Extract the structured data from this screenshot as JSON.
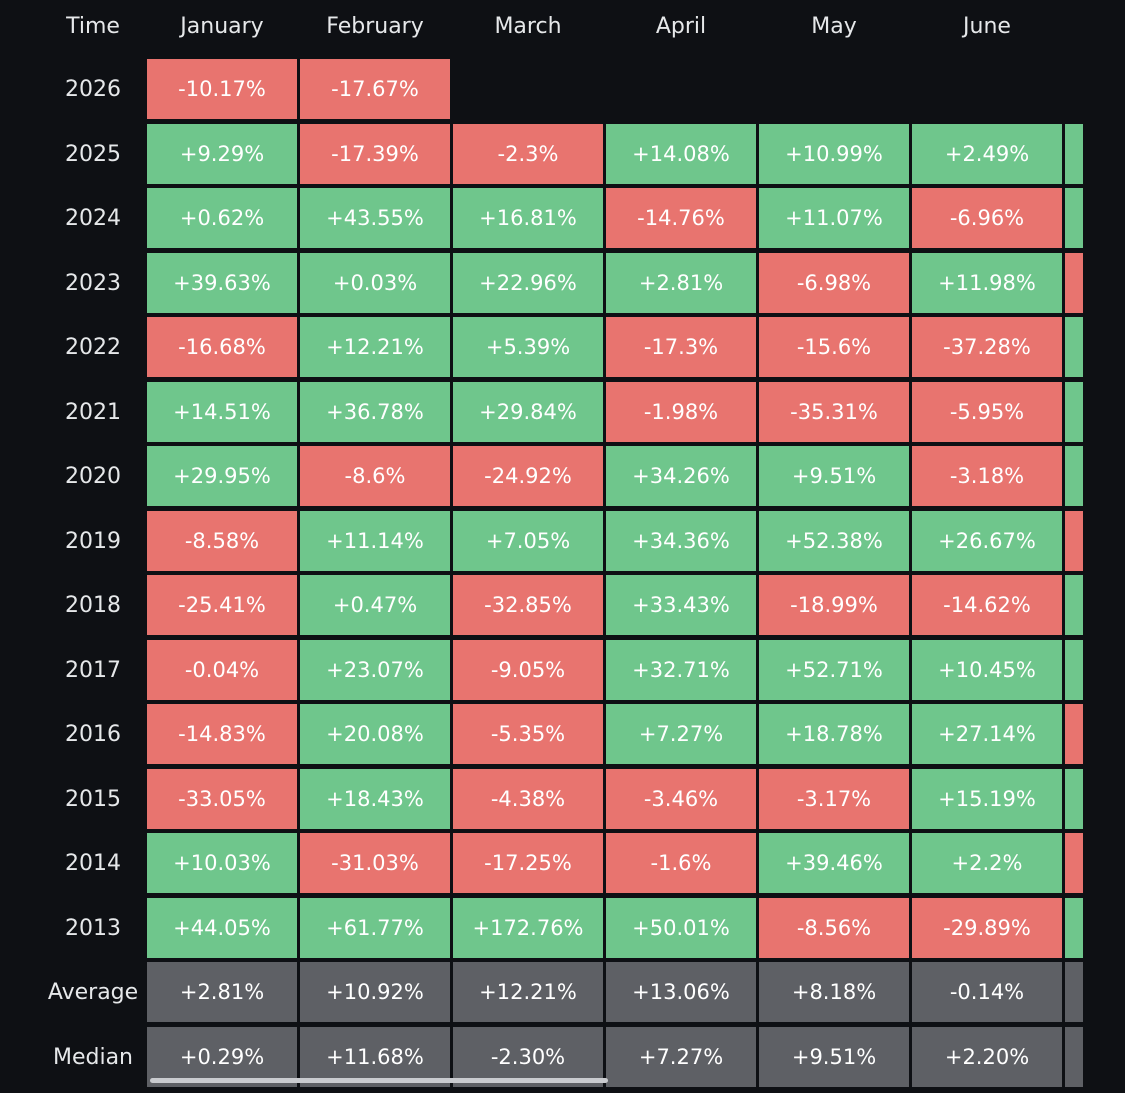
{
  "header": {
    "time_label": "Time",
    "months": [
      "January",
      "February",
      "March",
      "April",
      "May",
      "June"
    ]
  },
  "colors": {
    "positive": "#6fc68c",
    "negative": "#e8746f",
    "summary": "#5e6065",
    "background": "#0e1014"
  },
  "rows": [
    {
      "label": "2026",
      "values": [
        "-10.17%",
        "-17.67%",
        "",
        "",
        "",
        ""
      ],
      "next": ""
    },
    {
      "label": "2025",
      "values": [
        "+9.29%",
        "-17.39%",
        "-2.3%",
        "+14.08%",
        "+10.99%",
        "+2.49%"
      ],
      "next": "pos"
    },
    {
      "label": "2024",
      "values": [
        "+0.62%",
        "+43.55%",
        "+16.81%",
        "-14.76%",
        "+11.07%",
        "-6.96%"
      ],
      "next": "pos"
    },
    {
      "label": "2023",
      "values": [
        "+39.63%",
        "+0.03%",
        "+22.96%",
        "+2.81%",
        "-6.98%",
        "+11.98%"
      ],
      "next": "neg"
    },
    {
      "label": "2022",
      "values": [
        "-16.68%",
        "+12.21%",
        "+5.39%",
        "-17.3%",
        "-15.6%",
        "-37.28%"
      ],
      "next": "pos"
    },
    {
      "label": "2021",
      "values": [
        "+14.51%",
        "+36.78%",
        "+29.84%",
        "-1.98%",
        "-35.31%",
        "-5.95%"
      ],
      "next": "pos"
    },
    {
      "label": "2020",
      "values": [
        "+29.95%",
        "-8.6%",
        "-24.92%",
        "+34.26%",
        "+9.51%",
        "-3.18%"
      ],
      "next": "pos"
    },
    {
      "label": "2019",
      "values": [
        "-8.58%",
        "+11.14%",
        "+7.05%",
        "+34.36%",
        "+52.38%",
        "+26.67%"
      ],
      "next": "neg"
    },
    {
      "label": "2018",
      "values": [
        "-25.41%",
        "+0.47%",
        "-32.85%",
        "+33.43%",
        "-18.99%",
        "-14.62%"
      ],
      "next": "pos"
    },
    {
      "label": "2017",
      "values": [
        "-0.04%",
        "+23.07%",
        "-9.05%",
        "+32.71%",
        "+52.71%",
        "+10.45%"
      ],
      "next": "pos"
    },
    {
      "label": "2016",
      "values": [
        "-14.83%",
        "+20.08%",
        "-5.35%",
        "+7.27%",
        "+18.78%",
        "+27.14%"
      ],
      "next": "neg"
    },
    {
      "label": "2015",
      "values": [
        "-33.05%",
        "+18.43%",
        "-4.38%",
        "-3.46%",
        "-3.17%",
        "+15.19%"
      ],
      "next": "pos"
    },
    {
      "label": "2014",
      "values": [
        "+10.03%",
        "-31.03%",
        "-17.25%",
        "-1.6%",
        "+39.46%",
        "+2.2%"
      ],
      "next": "neg"
    },
    {
      "label": "2013",
      "values": [
        "+44.05%",
        "+61.77%",
        "+172.76%",
        "+50.01%",
        "-8.56%",
        "-29.89%"
      ],
      "next": "pos"
    }
  ],
  "summary": [
    {
      "label": "Average",
      "values": [
        "+2.81%",
        "+10.92%",
        "+12.21%",
        "+13.06%",
        "+8.18%",
        "-0.14%"
      ]
    },
    {
      "label": "Median",
      "values": [
        "+0.29%",
        "+11.68%",
        "-2.30%",
        "+7.27%",
        "+9.51%",
        "+2.20%"
      ]
    }
  ]
}
